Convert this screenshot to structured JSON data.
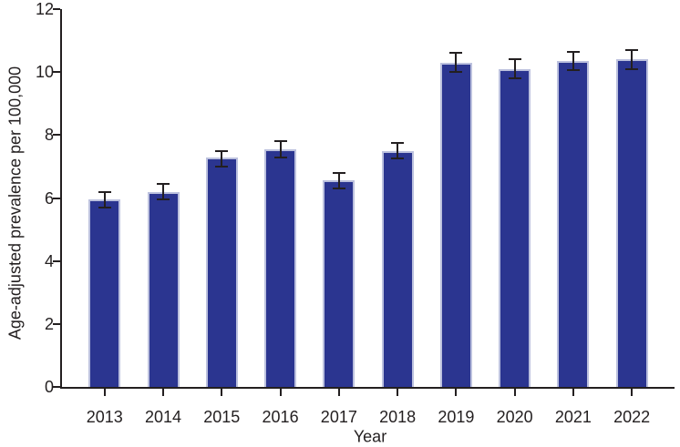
{
  "chart_data": {
    "type": "bar",
    "title": "",
    "xlabel": "Year",
    "ylabel": "Age-adjusted prevalence per 100,000",
    "categories": [
      "2013",
      "2014",
      "2015",
      "2016",
      "2017",
      "2018",
      "2019",
      "2020",
      "2021",
      "2022"
    ],
    "values": [
      5.95,
      6.2,
      7.3,
      7.55,
      6.55,
      7.5,
      10.3,
      10.1,
      10.35,
      10.4
    ],
    "error_low": [
      5.7,
      5.95,
      7.0,
      7.3,
      6.3,
      7.25,
      10.0,
      9.8,
      10.05,
      10.1
    ],
    "error_high": [
      6.2,
      6.45,
      7.5,
      7.8,
      6.8,
      7.75,
      10.6,
      10.4,
      10.65,
      10.7
    ],
    "ylim": [
      0,
      12
    ],
    "yticks": [
      0,
      2,
      4,
      6,
      8,
      10,
      12
    ],
    "bar_color": "#2b3590",
    "bar_edge_color": "#bcc1de",
    "axis_color": "#231f20",
    "error_bar_color": "#231f20",
    "grid": false,
    "legend": "none"
  }
}
